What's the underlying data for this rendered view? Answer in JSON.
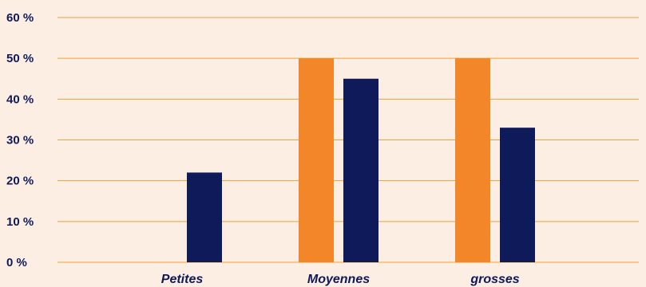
{
  "chart_data": {
    "type": "bar",
    "title": "",
    "xlabel": "",
    "ylabel": "",
    "categories": [
      "Petites",
      "Moyennes",
      "grosses"
    ],
    "series": [
      {
        "color": "#f4862a",
        "values": [
          0,
          50,
          50
        ]
      },
      {
        "color": "#0e1a5a",
        "values": [
          22,
          45,
          33
        ]
      }
    ],
    "ylim": [
      0,
      60
    ],
    "yticks": [
      0,
      10,
      20,
      30,
      40,
      50,
      60
    ],
    "ytick_labels": [
      "0 %",
      "10 %",
      "20 %",
      "30 %",
      "40 %",
      "50 %",
      "60 %"
    ],
    "grid": true,
    "grid_color": "#e8a23c",
    "background_color": "#fdeee3",
    "legend": "none"
  }
}
